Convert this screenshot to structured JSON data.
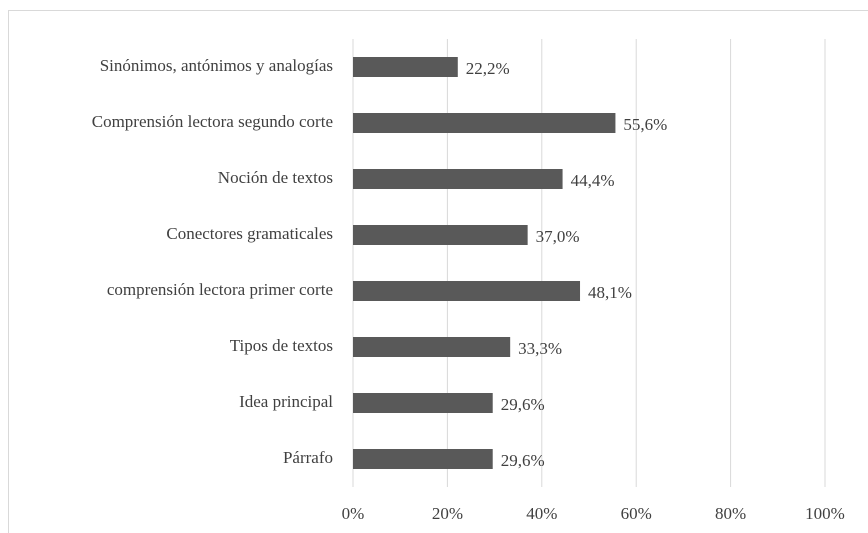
{
  "chart_data": {
    "type": "bar",
    "orientation": "horizontal",
    "categories": [
      "Sinónimos, antónimos y analogías",
      "Comprensión lectora segundo corte",
      "Noción de textos",
      "Conectores gramaticales",
      "comprensión lectora primer corte",
      "Tipos de textos",
      "Idea principal",
      "Párrafo"
    ],
    "values": [
      22.2,
      55.6,
      44.4,
      37.0,
      48.1,
      33.3,
      29.6,
      29.6
    ],
    "value_labels": [
      "22,2%",
      "55,6%",
      "44,4%",
      "37,0%",
      "48,1%",
      "33,3%",
      "29,6%",
      "29,6%"
    ],
    "color": "#595959",
    "xlim": [
      0,
      100
    ],
    "xticks": [
      {
        "value": 0,
        "label": "0%"
      },
      {
        "value": 20,
        "label": "20%"
      },
      {
        "value": 40,
        "label": "40%"
      },
      {
        "value": 60,
        "label": "60%"
      },
      {
        "value": 80,
        "label": "80%"
      },
      {
        "value": 100,
        "label": "100%"
      }
    ],
    "grid": true
  }
}
